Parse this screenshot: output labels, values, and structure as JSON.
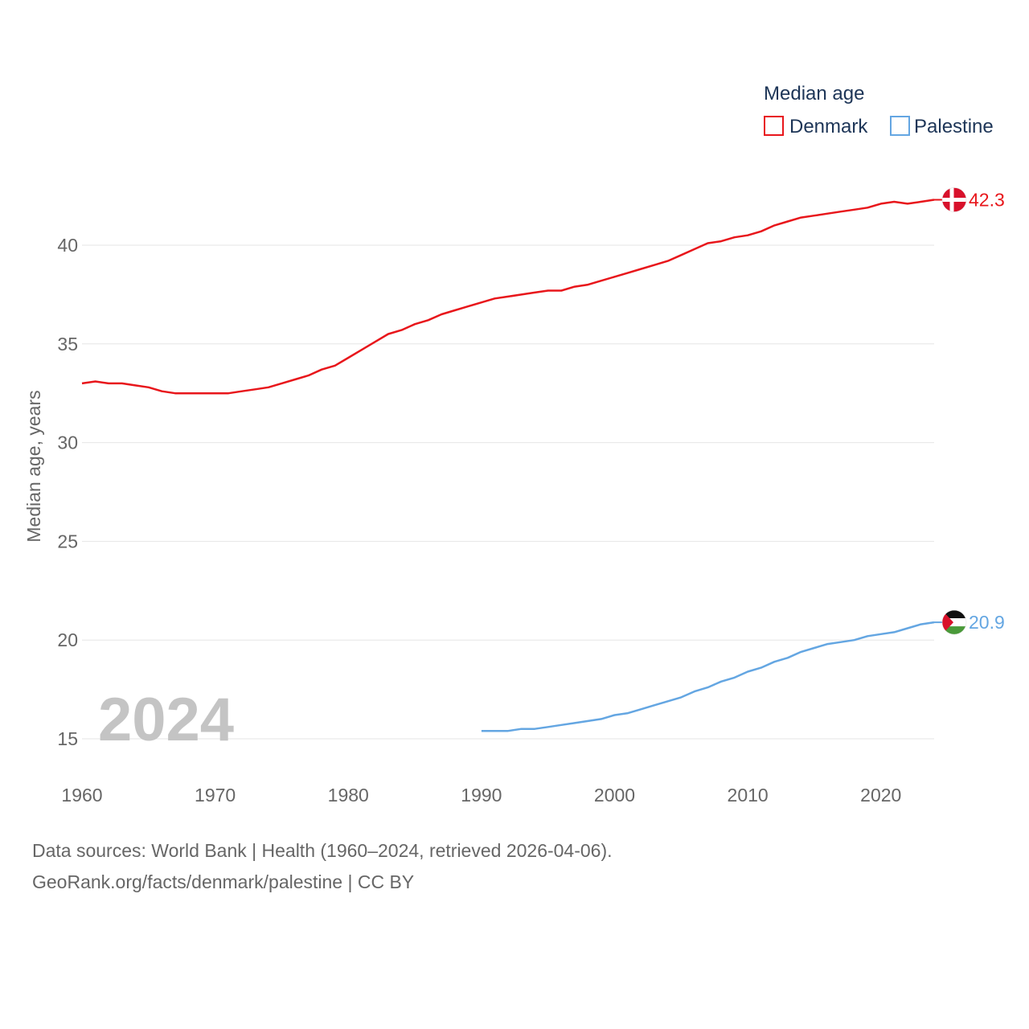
{
  "chart_data": {
    "type": "line",
    "title": "Median age",
    "ylabel": "Median age, years",
    "xlabel": "",
    "xlim": [
      1960,
      2024
    ],
    "ylim": [
      13,
      43.5
    ],
    "y_ticks": [
      15,
      20,
      25,
      30,
      35,
      40
    ],
    "x_ticks": [
      1960,
      1970,
      1980,
      1990,
      2000,
      2010,
      2020
    ],
    "grid": true,
    "legend_position": "top-right",
    "current_year_label": "2024",
    "series": [
      {
        "name": "Denmark",
        "color": "#e8161b",
        "end_label": "42.3",
        "flag": "denmark-flag",
        "x": [
          1960,
          1961,
          1962,
          1963,
          1964,
          1965,
          1966,
          1967,
          1968,
          1969,
          1970,
          1971,
          1972,
          1973,
          1974,
          1975,
          1976,
          1977,
          1978,
          1979,
          1980,
          1981,
          1982,
          1983,
          1984,
          1985,
          1986,
          1987,
          1988,
          1989,
          1990,
          1991,
          1992,
          1993,
          1994,
          1995,
          1996,
          1997,
          1998,
          1999,
          2000,
          2001,
          2002,
          2003,
          2004,
          2005,
          2006,
          2007,
          2008,
          2009,
          2010,
          2011,
          2012,
          2013,
          2014,
          2015,
          2016,
          2017,
          2018,
          2019,
          2020,
          2021,
          2022,
          2023,
          2024
        ],
        "values": [
          33.0,
          33.1,
          33.0,
          33.0,
          32.9,
          32.8,
          32.6,
          32.5,
          32.5,
          32.5,
          32.5,
          32.5,
          32.6,
          32.7,
          32.8,
          33.0,
          33.2,
          33.4,
          33.7,
          33.9,
          34.3,
          34.7,
          35.1,
          35.5,
          35.7,
          36.0,
          36.2,
          36.5,
          36.7,
          36.9,
          37.1,
          37.3,
          37.4,
          37.5,
          37.6,
          37.7,
          37.7,
          37.9,
          38.0,
          38.2,
          38.4,
          38.6,
          38.8,
          39.0,
          39.2,
          39.5,
          39.8,
          40.1,
          40.2,
          40.4,
          40.5,
          40.7,
          41.0,
          41.2,
          41.4,
          41.5,
          41.6,
          41.7,
          41.8,
          41.9,
          42.1,
          42.2,
          42.1,
          42.2,
          42.3
        ]
      },
      {
        "name": "Palestine",
        "color": "#64a6e2",
        "end_label": "20.9",
        "flag": "palestine-flag",
        "x": [
          1990,
          1991,
          1992,
          1993,
          1994,
          1995,
          1996,
          1997,
          1998,
          1999,
          2000,
          2001,
          2002,
          2003,
          2004,
          2005,
          2006,
          2007,
          2008,
          2009,
          2010,
          2011,
          2012,
          2013,
          2014,
          2015,
          2016,
          2017,
          2018,
          2019,
          2020,
          2021,
          2022,
          2023,
          2024
        ],
        "values": [
          15.4,
          15.4,
          15.4,
          15.5,
          15.5,
          15.6,
          15.7,
          15.8,
          15.9,
          16.0,
          16.2,
          16.3,
          16.5,
          16.7,
          16.9,
          17.1,
          17.4,
          17.6,
          17.9,
          18.1,
          18.4,
          18.6,
          18.9,
          19.1,
          19.4,
          19.6,
          19.8,
          19.9,
          20.0,
          20.2,
          20.3,
          20.4,
          20.6,
          20.8,
          20.9
        ]
      }
    ]
  },
  "source": {
    "line1": "Data sources: World Bank | Health (1960–2024, retrieved 2026-04-06).",
    "line2": "GeoRank.org/facts/denmark/palestine | CC BY"
  }
}
